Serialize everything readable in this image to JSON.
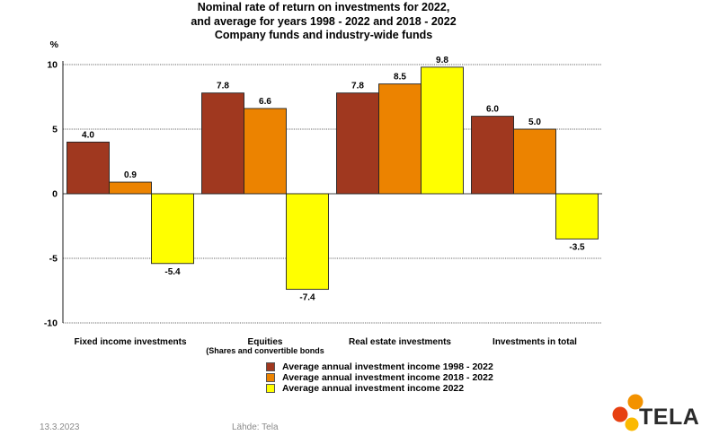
{
  "chart_data": {
    "type": "bar",
    "title_lines": [
      "Nominal rate of return on investments for  2022,",
      "and average for years 1998 - 2022 and 2018 - 2022",
      "Company funds and industry-wide funds"
    ],
    "ylabel": "%",
    "ylim": [
      -10,
      10
    ],
    "yticks": [
      10,
      5,
      0,
      -5,
      -10
    ],
    "grid": true,
    "categories": [
      "Fixed income investments",
      "Equities",
      "Real estate investments",
      "Investments  in total"
    ],
    "category_sublabels": [
      "",
      "(Shares  and  convertible bonds",
      "",
      ""
    ],
    "series": [
      {
        "name": "Average annual investment income 1998 - 2022",
        "color": "#a0381f",
        "values": [
          4.0,
          7.8,
          7.8,
          6.0
        ]
      },
      {
        "name": "Average annual investment income 2018 - 2022",
        "color": "#ec8300",
        "values": [
          0.9,
          6.6,
          8.5,
          5.0
        ]
      },
      {
        "name": "Average annual investment income 2022",
        "color": "#ffff00",
        "values": [
          -5.4,
          -7.4,
          9.8,
          -3.5
        ]
      }
    ],
    "data_labels": [
      [
        "4.0",
        "7.8",
        "7.8",
        "6.0"
      ],
      [
        "0.9",
        "6.6",
        "8.5",
        "5.0"
      ],
      [
        "-5.4",
        "-7.4",
        "9.8",
        "-3.5"
      ]
    ],
    "legend_position": "bottom-center"
  },
  "footer": {
    "date": "13.3.2023",
    "source": "Lähde: Tela"
  },
  "logo": {
    "text": "TELA",
    "colors": [
      "#f39200",
      "#e74011",
      "#fbb900"
    ]
  }
}
